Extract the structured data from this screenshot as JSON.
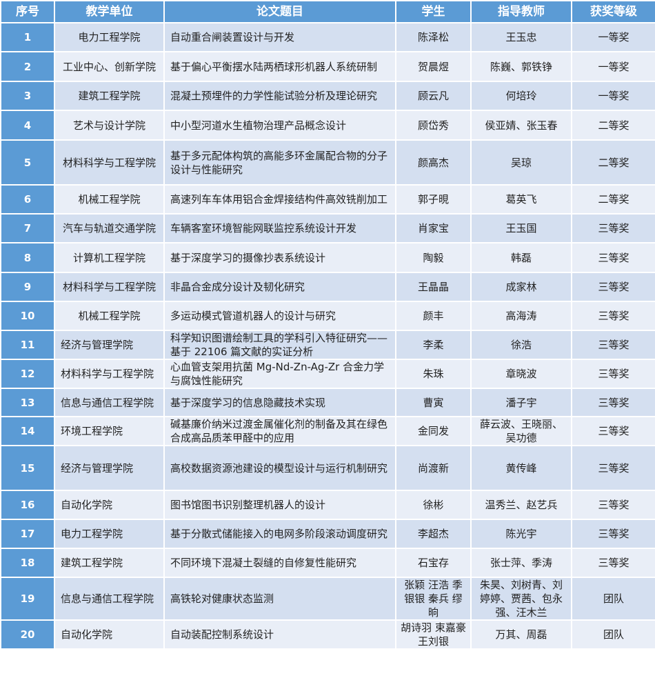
{
  "headers": [
    "序号",
    "教学单位",
    "论文题目",
    "学生",
    "指导教师",
    "获奖等级"
  ],
  "rows": [
    {
      "no": "1",
      "dept": "电力工程学院",
      "title": "自动重合闸装置设计与开发",
      "student": "陈泽松",
      "advisor": "王玉忠",
      "award": "一等奖"
    },
    {
      "no": "2",
      "dept": "工业中心、创新学院",
      "title": "基于偏心平衡摆水陆两栖球形机器人系统研制",
      "student": "贺晨煜",
      "advisor": "陈巍、郭铁铮",
      "award": "一等奖"
    },
    {
      "no": "3",
      "dept": "建筑工程学院",
      "title": "混凝土预埋件的力学性能试验分析及理论研究",
      "student": "顾云凡",
      "advisor": "何培玲",
      "award": "一等奖"
    },
    {
      "no": "4",
      "dept": "艺术与设计学院",
      "title": "中小型河道水生植物治理产品概念设计",
      "student": "顾岱秀",
      "advisor": "侯亚婧、张玉春",
      "award": "二等奖"
    },
    {
      "no": "5",
      "dept": "材料科学与工程学院",
      "title": "基于多元配体构筑的高能多环金属配合物的分子设计与性能研究",
      "student": "颜高杰",
      "advisor": "吴琼",
      "award": "二等奖"
    },
    {
      "no": "6",
      "dept": "机械工程学院",
      "title": "高速列车车体用铝合金焊接结构件高效铣削加工",
      "student": "郭子晛",
      "advisor": "葛英飞",
      "award": "二等奖"
    },
    {
      "no": "7",
      "dept": "汽车与轨道交通学院",
      "title": "车辆客室环境智能网联监控系统设计开发",
      "student": "肖家宝",
      "advisor": "王玉国",
      "award": "三等奖"
    },
    {
      "no": "8",
      "dept": "计算机工程学院",
      "title": "基于深度学习的摄像抄表系统设计",
      "student": "陶毅",
      "advisor": "韩磊",
      "award": "三等奖"
    },
    {
      "no": "9",
      "dept": "材料科学与工程学院",
      "title": "非晶合金成分设计及韧化研究",
      "student": "王晶晶",
      "advisor": "成家林",
      "award": "三等奖"
    },
    {
      "no": "10",
      "dept": "机械工程学院",
      "title": "多运动模式管道机器人的设计与研究",
      "student": "颜丰",
      "advisor": "高海涛",
      "award": "三等奖"
    },
    {
      "no": "11",
      "dept": "经济与管理学院",
      "title": "科学知识图谱绘制工具的学科引入特征研究——基于 22106 篇文献的实证分析",
      "student": "李柔",
      "advisor": "徐浩",
      "award": "三等奖"
    },
    {
      "no": "12",
      "dept": "材料科学与工程学院",
      "title": "心血管支架用抗菌 Mg-Nd-Zn-Ag-Zr 合金力学与腐蚀性能研究",
      "student": "朱珠",
      "advisor": "章晓波",
      "award": "三等奖"
    },
    {
      "no": "13",
      "dept": "信息与通信工程学院",
      "title": "基于深度学习的信息隐藏技术实现",
      "student": "曹寅",
      "advisor": "潘子宇",
      "award": "三等奖"
    },
    {
      "no": "14",
      "dept": "环境工程学院",
      "title": "碱基廉价纳米过渡金属催化剂的制备及其在绿色合成高品质苯甲醛中的应用",
      "student": "金同发",
      "advisor": "薛云波、王晓丽、吴功德",
      "award": "三等奖"
    },
    {
      "no": "15",
      "dept": "经济与管理学院",
      "title": "高校数据资源池建设的模型设计与运行机制研究",
      "student": "尚渡新",
      "advisor": "黄传峰",
      "award": "三等奖"
    },
    {
      "no": "16",
      "dept": "自动化学院",
      "title": "图书馆图书识别整理机器人的设计",
      "student": "徐彬",
      "advisor": "温秀兰、赵艺兵",
      "award": "三等奖"
    },
    {
      "no": "17",
      "dept": "电力工程学院",
      "title": "基于分散式储能接入的电网多阶段滚动调度研究",
      "student": "李超杰",
      "advisor": "陈光宇",
      "award": "三等奖"
    },
    {
      "no": "18",
      "dept": "建筑工程学院",
      "title": "不同环境下混凝土裂缝的自修复性能研究",
      "student": "石宝存",
      "advisor": "张士萍、季涛",
      "award": "三等奖"
    },
    {
      "no": "19",
      "dept": "信息与通信工程学院",
      "title": "高铁轮对健康状态监测",
      "student": "张颖 汪浩 季银银 秦兵 缪晌",
      "advisor": "朱昊、刘树青、刘婷婷、贾茜、包永强、汪木兰",
      "award": "团队"
    },
    {
      "no": "20",
      "dept": "自动化学院",
      "title": "自动装配控制系统设计",
      "student": "胡诗羽 束嘉豪 王刘银",
      "advisor": "万其、周磊",
      "award": "团队"
    }
  ]
}
